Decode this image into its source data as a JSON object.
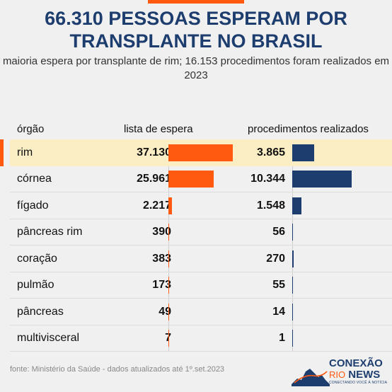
{
  "title": "66.310 PESSOAS ESPERAM POR TRANSPLANTE NO BRASIL",
  "subtitle": "maioria espera por transplante de rim; 16.153 procedimentos foram realizados em 2023",
  "source": "fonte: Ministério da Saúde - dados atualizados até 1º.set.2023",
  "logo": {
    "name": "CONEXÃO",
    "rio": "RIO",
    "news": "NEWS",
    "tagline": "CONECTANDO VOCÊ À NOTÍCIA"
  },
  "colors": {
    "accent": "#ff5a0f",
    "navy": "#1c3d6e",
    "highlight": "#fbeec4",
    "background": "#f0f0f0"
  },
  "chart_data": {
    "type": "table",
    "headers": {
      "organ": "órgão",
      "waiting": "lista de espera",
      "procedures": "procedimentos realizados"
    },
    "rows": [
      {
        "organ": "rim",
        "waiting": 37130,
        "waiting_label": "37.130",
        "procedures": 3865,
        "procedures_label": "3.865",
        "highlight": true
      },
      {
        "organ": "córnea",
        "waiting": 25961,
        "waiting_label": "25.961",
        "procedures": 10344,
        "procedures_label": "10.344"
      },
      {
        "organ": "fígado",
        "waiting": 2217,
        "waiting_label": "2.217",
        "procedures": 1548,
        "procedures_label": "1.548"
      },
      {
        "organ": "pâncreas rim",
        "waiting": 390,
        "waiting_label": "390",
        "procedures": 56,
        "procedures_label": "56"
      },
      {
        "organ": "coração",
        "waiting": 383,
        "waiting_label": "383",
        "procedures": 270,
        "procedures_label": "270"
      },
      {
        "organ": "pulmão",
        "waiting": 173,
        "waiting_label": "173",
        "procedures": 55,
        "procedures_label": "55"
      },
      {
        "organ": "pâncreas",
        "waiting": 49,
        "waiting_label": "49",
        "procedures": 14,
        "procedures_label": "14"
      },
      {
        "organ": "multivisceral",
        "waiting": 7,
        "waiting_label": "7",
        "procedures": 1,
        "procedures_label": "1"
      }
    ]
  }
}
